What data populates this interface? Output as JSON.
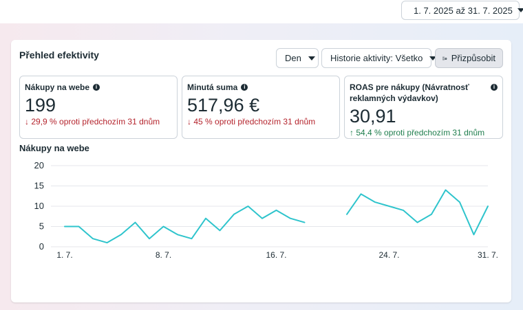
{
  "date_range": {
    "label": "1. 7. 2025 až 31. 7. 2025",
    "icon": "calendar-icon"
  },
  "panel": {
    "title": "Přehled efektivity",
    "controls": {
      "granularity": "Den",
      "history": "Historie aktivity: Všetko",
      "customize": "Přizpůsobit"
    }
  },
  "metrics": [
    {
      "label": "Nákupy na webe",
      "value": "199",
      "change": "29,9 % oproti předchozím 31 dnům",
      "direction": "down",
      "arrow": "↓"
    },
    {
      "label": "Minutá suma",
      "value": "517,96 €",
      "change": "45 % oproti předchozím 31 dnům",
      "direction": "down",
      "arrow": "↓"
    },
    {
      "label": "ROAS pre nákupy (Návratnosť reklamných výdavkov)",
      "value": "30,91",
      "change": "54,4 % oproti předchozím 31 dnům",
      "direction": "up",
      "arrow": "↑"
    }
  ],
  "colors": {
    "down": "#b4232c",
    "up": "#1e7d4d",
    "line": "#2ec4cc",
    "grid": "#e4e6eb"
  },
  "chart_data": {
    "type": "line",
    "title": "Nákupy na webe",
    "x": [
      1,
      2,
      3,
      4,
      5,
      6,
      7,
      8,
      9,
      10,
      11,
      12,
      13,
      14,
      15,
      16,
      17,
      18,
      19,
      20,
      21,
      22,
      23,
      24,
      25,
      26,
      27,
      28,
      29,
      30,
      31
    ],
    "x_ticks": [
      {
        "x": 1,
        "label": "1. 7."
      },
      {
        "x": 8,
        "label": "8. 7."
      },
      {
        "x": 16,
        "label": "16. 7."
      },
      {
        "x": 24,
        "label": "24. 7."
      },
      {
        "x": 31,
        "label": "31. 7."
      }
    ],
    "series": [
      {
        "values": [
          5,
          5,
          2,
          1,
          3,
          6,
          2,
          5,
          3,
          2,
          7,
          4,
          8,
          10,
          7,
          9,
          7,
          6,
          null,
          null,
          8,
          13,
          11,
          10,
          9,
          6,
          8,
          14,
          11,
          3,
          10
        ]
      }
    ],
    "ylim": [
      0,
      20
    ],
    "y_ticks": [
      0,
      5,
      10,
      15,
      20
    ],
    "grid": true
  }
}
